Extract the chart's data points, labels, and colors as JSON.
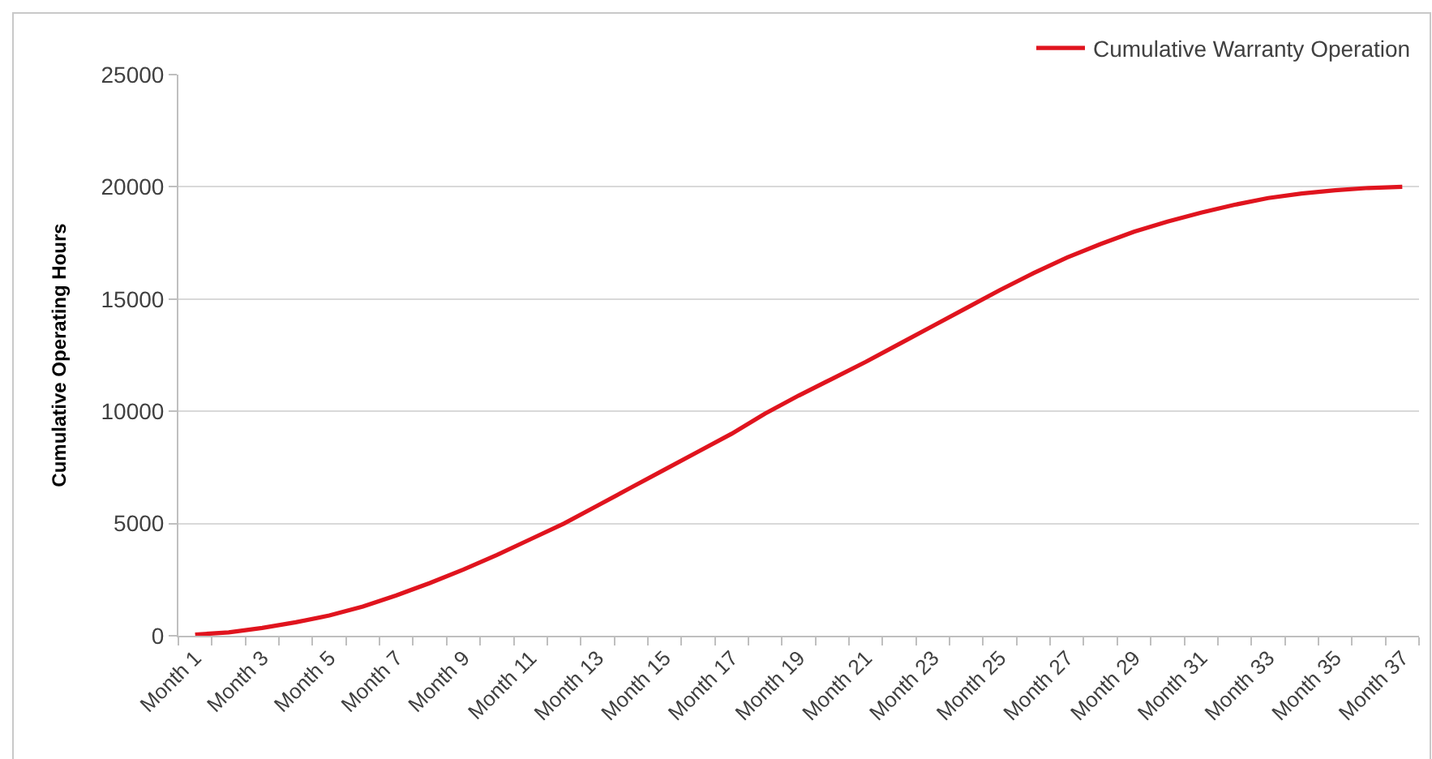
{
  "chart_data": {
    "type": "line",
    "ylabel": "Cumulative Operating Hours",
    "categories": [
      "Month 1",
      null,
      "Month 3",
      null,
      "Month 5",
      null,
      "Month 7",
      null,
      "Month 9",
      null,
      "Month 11",
      null,
      "Month 13",
      null,
      "Month 15",
      null,
      "Month 17",
      null,
      "Month 19",
      null,
      "Month 21",
      null,
      "Month 23",
      null,
      "Month 25",
      null,
      "Month 27",
      null,
      "Month 29",
      null,
      "Month 31",
      null,
      "Month 33",
      null,
      "Month 35",
      null,
      "Month 37"
    ],
    "series": [
      {
        "name": "Cumulative Warranty Operation",
        "color": "#e0141e",
        "values": [
          50,
          150,
          350,
          600,
          900,
          1300,
          1800,
          2350,
          2950,
          3600,
          4300,
          5000,
          5800,
          6600,
          7400,
          8200,
          9000,
          9900,
          10700,
          11450,
          12200,
          13000,
          13800,
          14600,
          15400,
          16150,
          16850,
          17450,
          18000,
          18450,
          18850,
          19200,
          19500,
          19700,
          19850,
          19950,
          20000
        ]
      }
    ],
    "ylim": [
      0,
      25000
    ],
    "yticks": [
      0,
      5000,
      10000,
      15000,
      20000,
      25000
    ],
    "grid": "y",
    "legend": "top right",
    "line_style": "solid"
  }
}
